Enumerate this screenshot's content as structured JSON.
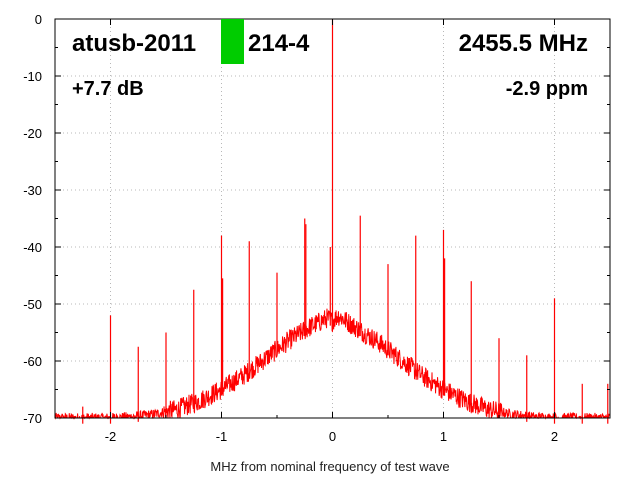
{
  "chart_data": {
    "type": "line",
    "title": "",
    "xlabel": "MHz from nominal frequency of test wave",
    "ylabel": "",
    "xlim": [
      -2.5,
      2.5
    ],
    "ylim": [
      -70,
      0
    ],
    "xticks": [
      -2,
      -1,
      0,
      1,
      2
    ],
    "yticks": [
      0,
      -10,
      -20,
      -30,
      -40,
      -50,
      -60,
      -70
    ],
    "grid": true,
    "series_color": "#ff0000",
    "marker_color": "#00cc00",
    "annotations": {
      "device_left": "atusb-2011",
      "device_right": "214-4",
      "frequency": "2455.5 MHz",
      "gain": "+7.7 dB",
      "offset": "-2.9 ppm"
    },
    "noise_floor": {
      "x": [
        -2.5,
        -2.2,
        -2.0,
        -1.8,
        -1.6,
        -1.4,
        -1.2,
        -1.0,
        -0.8,
        -0.6,
        -0.4,
        -0.2,
        -0.05,
        0.0,
        0.05,
        0.2,
        0.4,
        0.6,
        0.8,
        1.0,
        1.2,
        1.4,
        1.6,
        1.8,
        2.0,
        2.2,
        2.5
      ],
      "y": [
        -70,
        -70,
        -70,
        -69.8,
        -69.3,
        -68.5,
        -67,
        -65,
        -62.5,
        -59.5,
        -56.5,
        -54,
        -52.5,
        -53,
        -52,
        -54,
        -56.5,
        -59.5,
        -62.5,
        -65,
        -67,
        -68.5,
        -69.3,
        -69.8,
        -70,
        -70,
        -70
      ]
    },
    "spurs": [
      {
        "x": -2.25,
        "y": -68
      },
      {
        "x": -2.0,
        "y": -52
      },
      {
        "x": -1.75,
        "y": -57.5
      },
      {
        "x": -1.5,
        "y": -55
      },
      {
        "x": -1.25,
        "y": -47.5
      },
      {
        "x": -1.0,
        "y": -38
      },
      {
        "x": -0.99,
        "y": -45.5
      },
      {
        "x": -0.75,
        "y": -39
      },
      {
        "x": -0.5,
        "y": -44.5
      },
      {
        "x": -0.25,
        "y": -35
      },
      {
        "x": -0.24,
        "y": -36
      },
      {
        "x": -0.02,
        "y": -40
      },
      {
        "x": 0.0,
        "y": 0
      },
      {
        "x": 0.25,
        "y": -34.5
      },
      {
        "x": 0.5,
        "y": -43
      },
      {
        "x": 0.75,
        "y": -38
      },
      {
        "x": 1.0,
        "y": -37
      },
      {
        "x": 1.01,
        "y": -42
      },
      {
        "x": 1.25,
        "y": -46
      },
      {
        "x": 1.5,
        "y": -56
      },
      {
        "x": 1.75,
        "y": -59
      },
      {
        "x": 2.0,
        "y": -49
      },
      {
        "x": 2.25,
        "y": -64
      },
      {
        "x": 2.48,
        "y": -64
      }
    ]
  }
}
